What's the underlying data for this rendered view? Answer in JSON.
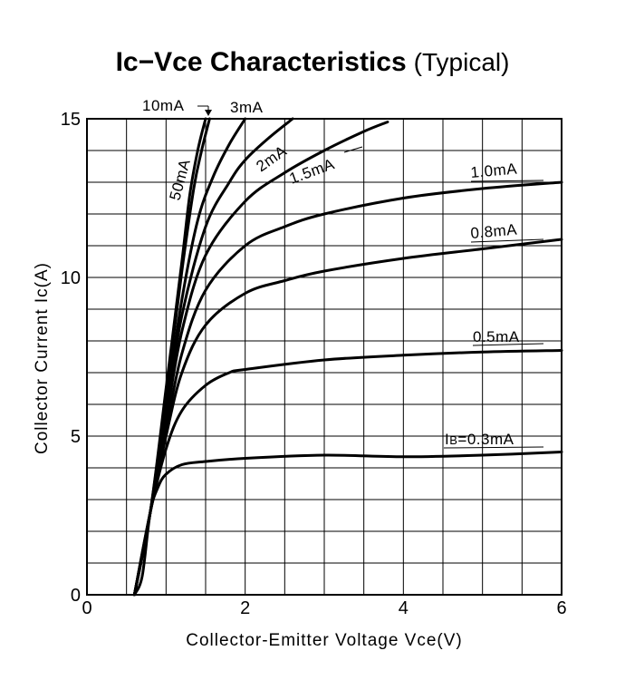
{
  "chart_data": {
    "type": "line",
    "title": {
      "main_ic": "Ic",
      "main_dash": "−",
      "main_vce": "Vce",
      "main_rest": " Characteristics",
      "sub": "(Typical)",
      "full": "Ic−Vce Characteristics (Typical)"
    },
    "xlabel": "Collector-Emitter Voltage Vce(V)",
    "ylabel": "Collector Current Ic(A)",
    "xlim": [
      0,
      6
    ],
    "ylim": [
      0,
      15
    ],
    "x_ticks": [
      "0",
      "2",
      "4",
      "6"
    ],
    "y_ticks": [
      "0",
      "5",
      "10",
      "15"
    ],
    "grid": true,
    "series": [
      {
        "name": "Ib=0.3mA",
        "x": [
          0.6,
          0.7,
          0.8,
          0.9,
          1.0,
          1.2,
          1.5,
          2.0,
          3.0,
          4.0,
          5.0,
          6.0
        ],
        "y": [
          0,
          0.6,
          2.6,
          3.4,
          3.8,
          4.1,
          4.2,
          4.3,
          4.4,
          4.35,
          4.4,
          4.5
        ]
      },
      {
        "name": "0.5mA",
        "x": [
          0.6,
          0.8,
          1.0,
          1.2,
          1.5,
          1.8,
          2.0,
          3.0,
          4.0,
          5.0,
          6.0
        ],
        "y": [
          0,
          2.6,
          4.6,
          5.8,
          6.6,
          7.0,
          7.1,
          7.4,
          7.55,
          7.65,
          7.7
        ]
      },
      {
        "name": "0.8mA",
        "x": [
          0.6,
          0.8,
          1.0,
          1.2,
          1.5,
          2.0,
          2.5,
          3.0,
          4.0,
          5.0,
          6.0
        ],
        "y": [
          0,
          2.6,
          5.0,
          7.0,
          8.5,
          9.5,
          9.9,
          10.2,
          10.6,
          10.9,
          11.2
        ]
      },
      {
        "name": "1.0mA",
        "x": [
          0.6,
          0.8,
          1.0,
          1.2,
          1.5,
          2.0,
          2.5,
          3.0,
          4.0,
          5.0,
          6.0
        ],
        "y": [
          0,
          2.6,
          5.2,
          7.6,
          9.6,
          11.0,
          11.6,
          12.0,
          12.5,
          12.8,
          13.0
        ]
      },
      {
        "name": "1.5mA",
        "x": [
          0.6,
          0.8,
          1.0,
          1.2,
          1.5,
          2.0,
          2.5,
          3.0,
          3.5,
          3.8
        ],
        "y": [
          0,
          2.6,
          5.5,
          8.3,
          10.7,
          12.4,
          13.3,
          14.0,
          14.6,
          14.9
        ]
      },
      {
        "name": "2mA",
        "x": [
          0.6,
          0.8,
          1.0,
          1.2,
          1.5,
          1.8,
          2.0,
          2.3,
          2.6
        ],
        "y": [
          0,
          2.6,
          5.7,
          8.8,
          11.6,
          13.0,
          13.7,
          14.4,
          15.0
        ]
      },
      {
        "name": "3mA",
        "x": [
          0.6,
          0.8,
          1.0,
          1.2,
          1.4,
          1.6,
          1.8,
          2.0
        ],
        "y": [
          0,
          2.6,
          6.0,
          9.3,
          11.8,
          13.2,
          14.2,
          15.0
        ]
      },
      {
        "name": "10mA",
        "x": [
          0.6,
          0.8,
          1.0,
          1.2,
          1.35,
          1.45,
          1.55
        ],
        "y": [
          0,
          2.6,
          6.3,
          10.2,
          12.8,
          14.0,
          15.0
        ]
      },
      {
        "name": "50mA",
        "x": [
          0.6,
          0.8,
          1.0,
          1.2,
          1.3,
          1.4,
          1.5
        ],
        "y": [
          0,
          2.6,
          6.5,
          10.5,
          12.6,
          14.0,
          15.0
        ]
      }
    ],
    "curve_labels": [
      "10mA",
      "3mA",
      "50mA",
      "2mA",
      "1.5mA",
      "1.0mA",
      "0.8mA",
      "0.5mA",
      "0.3mA"
    ],
    "label_prefix": "I",
    "label_prefix_sub": "B",
    "label_prefix_eq": "="
  }
}
